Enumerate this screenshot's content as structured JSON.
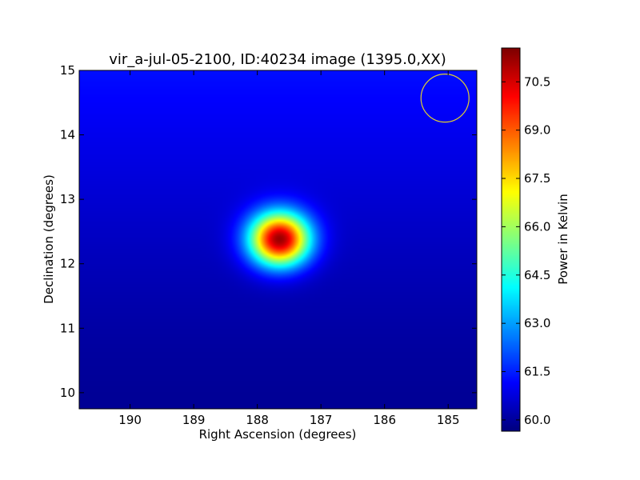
{
  "chart_data": {
    "type": "heatmap",
    "title": "vir_a-jul-05-2100, ID:40234 image (1395.0,XX)",
    "xlabel": "Right Ascension (degrees)",
    "ylabel": "Declination (degrees)",
    "colorbar_label": "Power in Kelvin",
    "colormap": "jet",
    "xlim": [
      190.8,
      184.55
    ],
    "ylim": [
      9.75,
      15.0
    ],
    "clim": [
      59.65,
      71.55
    ],
    "x_ticks": [
      190,
      189,
      188,
      187,
      186,
      185
    ],
    "y_ticks": [
      10,
      11,
      12,
      13,
      14,
      15
    ],
    "colorbar_ticks": [
      "60.0",
      "61.5",
      "63.0",
      "64.5",
      "66.0",
      "67.5",
      "69.0",
      "70.5"
    ],
    "source": {
      "ra": 187.65,
      "dec": 12.38,
      "peak_kelvin": 71.4
    },
    "background": {
      "top_kelvin": 61.3,
      "bottom_kelvin": 59.9
    },
    "beam_marker": {
      "ra": 185.05,
      "dec": 14.57,
      "color": "#e0d030"
    },
    "grid": false,
    "legend": "none"
  }
}
